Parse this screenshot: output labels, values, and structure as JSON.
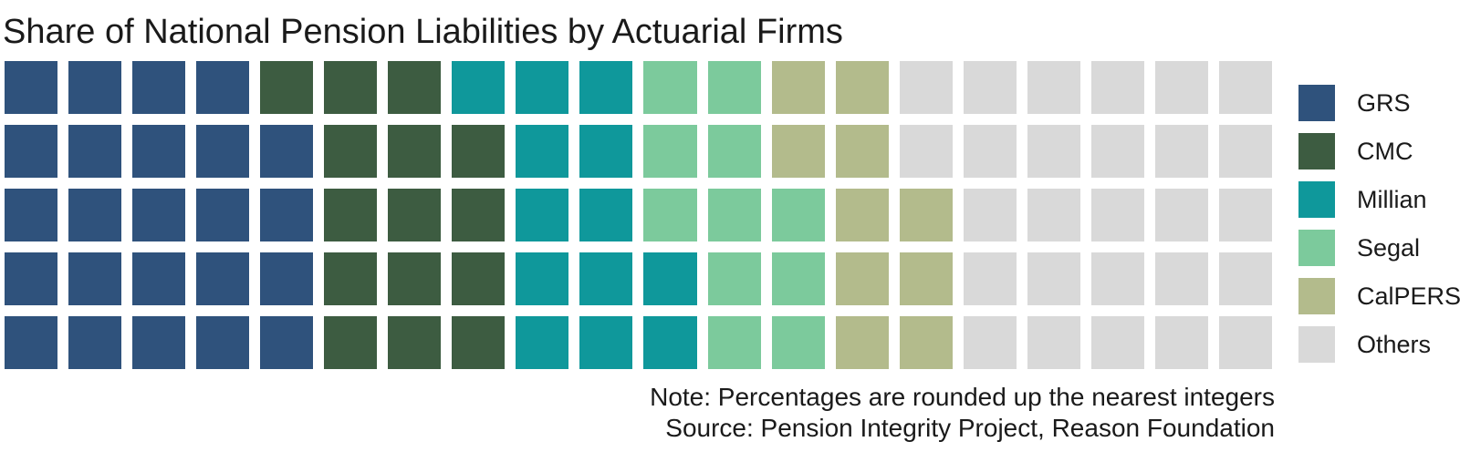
{
  "title": "Share of National Pension Liabilities by Actuarial Firms",
  "notes": {
    "note": "Note: Percentages are rounded up the nearest integers",
    "source": "Source: Pension Integrity Project, Reason Foundation"
  },
  "chart_data": {
    "type": "waffle",
    "title": "Share of National Pension Liabilities by Actuarial Firms",
    "rows": 5,
    "cols": 20,
    "total_squares": 100,
    "square_unit_percent": 1,
    "legend_position": "right",
    "fill_order": "column-wise, bottom to top, left to right",
    "categories": [
      {
        "name": "GRS",
        "value": 24,
        "color": "#2F527C"
      },
      {
        "name": "CMC",
        "value": 15,
        "color": "#3D5C41"
      },
      {
        "name": "Millian",
        "value": 13,
        "color": "#0F989B"
      },
      {
        "name": "Segal",
        "value": 11,
        "color": "#7CCA9C"
      },
      {
        "name": "CalPERS",
        "value": 10,
        "color": "#B3BB8C"
      },
      {
        "name": "Others",
        "value": 27,
        "color": "#D9D9D9"
      }
    ],
    "grid": [
      [
        "GRS",
        "GRS",
        "GRS",
        "GRS",
        "CMC",
        "CMC",
        "CMC",
        "Millian",
        "Millian",
        "Millian",
        "Segal",
        "Segal",
        "CalPERS",
        "CalPERS",
        "Others",
        "Others",
        "Others",
        "Others",
        "Others",
        "Others"
      ],
      [
        "GRS",
        "GRS",
        "GRS",
        "GRS",
        "GRS",
        "CMC",
        "CMC",
        "CMC",
        "Millian",
        "Millian",
        "Segal",
        "Segal",
        "CalPERS",
        "CalPERS",
        "Others",
        "Others",
        "Others",
        "Others",
        "Others",
        "Others"
      ],
      [
        "GRS",
        "GRS",
        "GRS",
        "GRS",
        "GRS",
        "CMC",
        "CMC",
        "CMC",
        "Millian",
        "Millian",
        "Segal",
        "Segal",
        "Segal",
        "CalPERS",
        "CalPERS",
        "Others",
        "Others",
        "Others",
        "Others",
        "Others"
      ],
      [
        "GRS",
        "GRS",
        "GRS",
        "GRS",
        "GRS",
        "CMC",
        "CMC",
        "CMC",
        "Millian",
        "Millian",
        "Millian",
        "Segal",
        "Segal",
        "CalPERS",
        "CalPERS",
        "Others",
        "Others",
        "Others",
        "Others",
        "Others"
      ],
      [
        "GRS",
        "GRS",
        "GRS",
        "GRS",
        "GRS",
        "CMC",
        "CMC",
        "CMC",
        "Millian",
        "Millian",
        "Millian",
        "Segal",
        "Segal",
        "CalPERS",
        "CalPERS",
        "Others",
        "Others",
        "Others",
        "Others",
        "Others"
      ]
    ]
  }
}
